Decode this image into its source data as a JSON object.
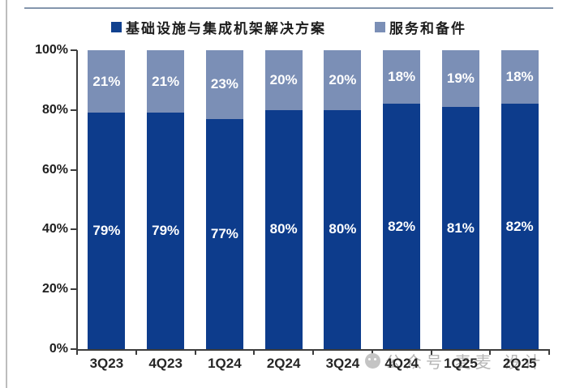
{
  "page": {
    "background": "#ffffff"
  },
  "decor": {
    "left_border_color": "#bdbdbd",
    "top_rule_color": "#8496ad",
    "axis_color": "#3d3d3d"
  },
  "legend": [
    {
      "label": "基础设施与集成机架解决方案",
      "color": "#11418f"
    },
    {
      "label": "服务和备件",
      "color": "#7b8fb6"
    }
  ],
  "chart_data": {
    "type": "bar",
    "stacked": true,
    "title": "",
    "xlabel": "",
    "ylabel": "",
    "categories": [
      "3Q23",
      "4Q23",
      "1Q24",
      "2Q24",
      "3Q24",
      "4Q24",
      "1Q25",
      "2Q25"
    ],
    "series": [
      {
        "name": "基础设施与集成机架解决方案",
        "color": "#0d3c8c",
        "values": [
          79,
          79,
          77,
          80,
          80,
          82,
          81,
          82
        ]
      },
      {
        "name": "服务和备件",
        "color": "#7b8fb6",
        "values": [
          21,
          21,
          23,
          20,
          20,
          18,
          19,
          18
        ]
      }
    ],
    "data_label_suffix": "%",
    "y_tick_values": [
      0,
      20,
      40,
      60,
      80,
      100
    ],
    "y_tick_labels": [
      "0%",
      "20%",
      "40%",
      "60%",
      "80%",
      "100%"
    ],
    "ylim": [
      0,
      100
    ],
    "grid": false,
    "legend_position": "top"
  },
  "watermark": {
    "icon": "wechat-icon",
    "text": "公众号 麦麦 设计"
  }
}
